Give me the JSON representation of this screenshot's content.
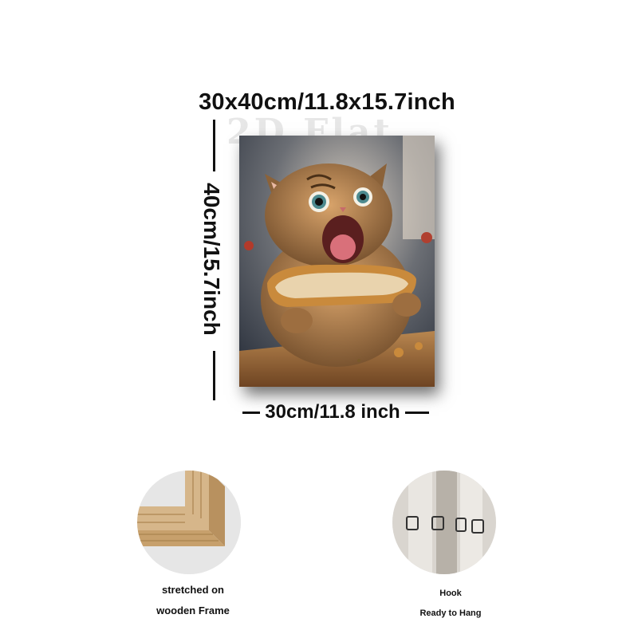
{
  "product": {
    "overall_size": "30x40cm/11.8x15.7inch",
    "height_size": "40cm/15.7inch",
    "width_size": "30cm/11.8 inch",
    "watermark": "2D Flat"
  },
  "features": [
    {
      "caption_line1": "stretched on",
      "caption_line2": "wooden Frame",
      "icon": "wooden-frame-corner"
    },
    {
      "caption_line1": "Hook",
      "caption_line2": "Ready to Hang",
      "icon": "hanging-hook"
    }
  ],
  "colors": {
    "background": "#ffffff",
    "text": "#111111",
    "cat_fur": "#b07a4a",
    "bread_crust": "#c98a3c",
    "wood": "#d6b68a"
  }
}
